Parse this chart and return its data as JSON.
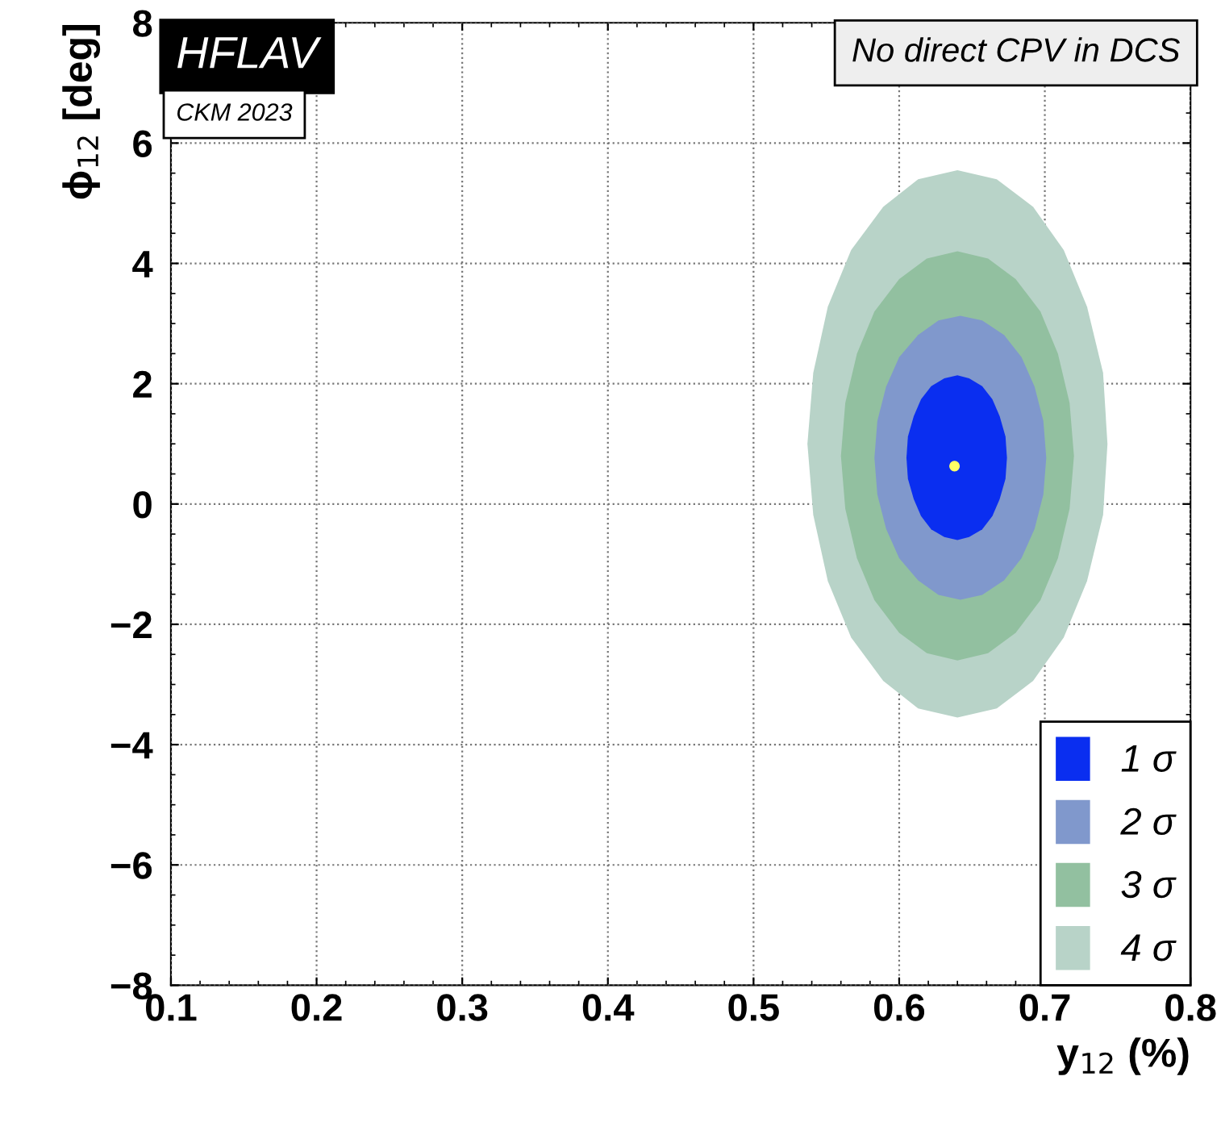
{
  "chart_data": {
    "type": "area",
    "title": "No direct CPV in DCS",
    "xlabel": "y$_{12}$ (%)",
    "ylabel": "ϕ$_{12}$ [deg]",
    "annotations": [
      "HFLAV",
      "CKM 2023"
    ],
    "series": [
      {
        "name": "1 σ",
        "color": "#0a2ef0",
        "x": [
          0.674,
          0.673,
          0.669,
          0.664,
          0.657,
          0.648,
          0.64,
          0.631,
          0.622,
          0.615,
          0.61,
          0.606,
          0.605,
          0.606,
          0.61,
          0.615,
          0.622,
          0.631,
          0.64,
          0.648,
          0.657,
          0.664,
          0.669,
          0.673
        ],
        "values": [
          0.77,
          1.12,
          1.46,
          1.74,
          1.96,
          2.09,
          2.14,
          2.09,
          1.96,
          1.74,
          1.46,
          1.12,
          0.77,
          0.42,
          0.08,
          -0.2,
          -0.42,
          -0.55,
          -0.6,
          -0.55,
          -0.42,
          -0.2,
          0.08,
          0.42
        ]
      },
      {
        "name": "2 σ",
        "color": "#8098cc",
        "x": [
          0.701,
          0.699,
          0.693,
          0.684,
          0.672,
          0.657,
          0.642,
          0.627,
          0.613,
          0.6,
          0.591,
          0.585,
          0.583,
          0.585,
          0.591,
          0.6,
          0.613,
          0.627,
          0.642,
          0.657,
          0.672,
          0.684,
          0.693,
          0.699
        ],
        "values": [
          0.77,
          1.38,
          1.95,
          2.44,
          2.81,
          3.05,
          3.13,
          3.05,
          2.81,
          2.44,
          1.95,
          1.38,
          0.77,
          0.16,
          -0.41,
          -0.9,
          -1.27,
          -1.51,
          -1.59,
          -1.51,
          -1.27,
          -0.9,
          -0.41,
          0.16
        ]
      },
      {
        "name": "3 σ",
        "color": "#92c0a0",
        "x": [
          0.72,
          0.717,
          0.709,
          0.697,
          0.68,
          0.661,
          0.64,
          0.619,
          0.6,
          0.583,
          0.571,
          0.563,
          0.56,
          0.563,
          0.571,
          0.583,
          0.6,
          0.619,
          0.64,
          0.661,
          0.68,
          0.697,
          0.709,
          0.717
        ],
        "values": [
          0.8,
          1.68,
          2.5,
          3.2,
          3.74,
          4.08,
          4.2,
          4.08,
          3.74,
          3.2,
          2.5,
          1.68,
          0.8,
          -0.08,
          -0.9,
          -1.6,
          -2.14,
          -2.48,
          -2.6,
          -2.48,
          -2.14,
          -1.6,
          -0.9,
          -0.08
        ]
      },
      {
        "name": "4 σ",
        "color": "#b8d3c8",
        "x": [
          0.743,
          0.74,
          0.729,
          0.713,
          0.692,
          0.667,
          0.64,
          0.613,
          0.589,
          0.567,
          0.551,
          0.541,
          0.537,
          0.541,
          0.551,
          0.567,
          0.589,
          0.613,
          0.64,
          0.667,
          0.692,
          0.713,
          0.729,
          0.74
        ],
        "values": [
          1.0,
          2.18,
          3.28,
          4.22,
          4.94,
          5.4,
          5.55,
          5.4,
          4.94,
          4.22,
          3.28,
          2.18,
          1.0,
          -0.18,
          -1.28,
          -2.22,
          -2.94,
          -3.4,
          -3.55,
          -3.4,
          -2.94,
          -2.22,
          -1.28,
          -0.18
        ]
      },
      {
        "type": "scatter",
        "color": "#ffff66",
        "x": [
          0.638
        ],
        "values": [
          0.63
        ]
      }
    ],
    "xlim": [
      0.1,
      0.8
    ],
    "ylim": [
      -8,
      8
    ],
    "xticks": [
      0.1,
      0.2,
      0.3,
      0.4,
      0.5,
      0.6,
      0.7,
      0.8
    ],
    "yticks": [
      {
        "value": -8,
        "label": "−8"
      },
      {
        "value": -6,
        "label": "−6"
      },
      {
        "value": -4,
        "label": "−4"
      },
      {
        "value": -2,
        "label": "−2"
      },
      0,
      2,
      4,
      6,
      8
    ],
    "grid": true,
    "legend": "bottom right"
  }
}
